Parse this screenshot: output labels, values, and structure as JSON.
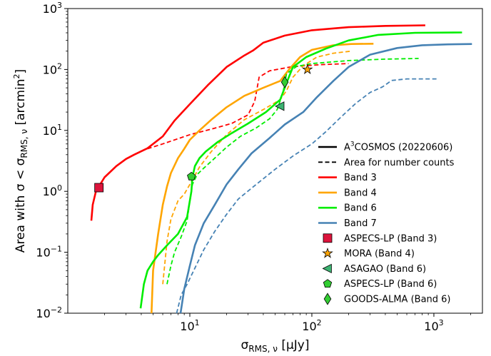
{
  "chart_data": {
    "type": "line",
    "xscale": "log",
    "yscale": "log",
    "xlim": [
      1.0,
      2500
    ],
    "ylim": [
      0.01,
      1000
    ],
    "x_ticks": [
      {
        "value": 10,
        "base": "10",
        "exp": "1"
      },
      {
        "value": 100,
        "base": "10",
        "exp": "2"
      },
      {
        "value": 1000,
        "base": "10",
        "exp": "3"
      }
    ],
    "y_ticks": [
      {
        "value": 0.01,
        "base": "10",
        "exp": "−2"
      },
      {
        "value": 0.1,
        "base": "10",
        "exp": "−1"
      },
      {
        "value": 1,
        "base": "10",
        "exp": "0"
      },
      {
        "value": 10,
        "base": "10",
        "exp": "1"
      },
      {
        "value": 100,
        "base": "10",
        "exp": "2"
      },
      {
        "value": 1000,
        "base": "10",
        "exp": "3"
      }
    ],
    "xlabel": {
      "main": "σ",
      "sub": "RMS, ν",
      "unit": " [μJy]"
    },
    "ylabel": {
      "pre": "Area with σ < σ",
      "sub": "RMS, ν",
      "unit": " [arcmin",
      "sup": "2",
      "close": "]"
    },
    "legend_position": "lower-right",
    "legend": [
      {
        "label_pre": "A",
        "label_sup": "3",
        "label_post": "COSMOS (20220606)",
        "kind": "line",
        "color": "#000000",
        "dash": false
      },
      {
        "label_pre": "Area for number counts",
        "kind": "line",
        "color": "#000000",
        "dash": true
      },
      {
        "label_pre": "Band 3",
        "kind": "line",
        "color": "#ff0000",
        "dash": false
      },
      {
        "label_pre": "Band 4",
        "kind": "line",
        "color": "#ffa500",
        "dash": false
      },
      {
        "label_pre": "Band 6",
        "kind": "line",
        "color": "#00ee00",
        "dash": false
      },
      {
        "label_pre": "Band 7",
        "kind": "line",
        "color": "#4682b4",
        "dash": false
      },
      {
        "label_pre": "ASPECS-LP (Band 3)",
        "kind": "square",
        "color": "#dc143c"
      },
      {
        "label_pre": "MORA (Band 4)",
        "kind": "star",
        "color": "#ffa500"
      },
      {
        "label_pre": "ASAGAO (Band 6)",
        "kind": "triangle-left",
        "color": "#3cb371"
      },
      {
        "label_pre": "ASPECS-LP (Band 6)",
        "kind": "pentagon",
        "color": "#32cd32"
      },
      {
        "label_pre": "GOODS-ALMA (Band 6)",
        "kind": "diamond",
        "color": "#32cd32"
      }
    ],
    "series": [
      {
        "band": "Band 3",
        "style": "solid",
        "color": "#ff0000",
        "points": [
          [
            1.56,
            0.33
          ],
          [
            1.6,
            0.6
          ],
          [
            1.7,
            1.0
          ],
          [
            2.0,
            1.7
          ],
          [
            2.5,
            2.6
          ],
          [
            3.0,
            3.4
          ],
          [
            3.5,
            4.0
          ],
          [
            4.5,
            5.1
          ],
          [
            6.0,
            8.0
          ],
          [
            7.5,
            14.5
          ],
          [
            10.0,
            27
          ],
          [
            14.0,
            55
          ],
          [
            20.0,
            110
          ],
          [
            28.0,
            170
          ],
          [
            33.0,
            205
          ],
          [
            40.0,
            275
          ],
          [
            60.0,
            360
          ],
          [
            100.0,
            440
          ],
          [
            200.0,
            495
          ],
          [
            400.0,
            520
          ],
          [
            850.0,
            530
          ]
        ]
      },
      {
        "band": "Band 3",
        "style": "dashed",
        "color": "#ff0000",
        "points": [
          [
            4.5,
            5.0
          ],
          [
            6.0,
            6.0
          ],
          [
            10.0,
            8.5
          ],
          [
            15.0,
            10.5
          ],
          [
            22.0,
            13.0
          ],
          [
            30.0,
            18.0
          ],
          [
            34.0,
            30.0
          ],
          [
            37.0,
            75.0
          ],
          [
            45.0,
            95.0
          ],
          [
            70.0,
            112
          ],
          [
            120.0,
            120
          ],
          [
            200.0,
            125
          ]
        ]
      },
      {
        "band": "Band 4",
        "style": "solid",
        "color": "#ffa500",
        "points": [
          [
            4.85,
            0.01
          ],
          [
            5.0,
            0.05
          ],
          [
            5.5,
            0.2
          ],
          [
            6.0,
            0.6
          ],
          [
            6.5,
            1.2
          ],
          [
            7.0,
            2.0
          ],
          [
            8.0,
            3.5
          ],
          [
            9.0,
            5.0
          ],
          [
            10.0,
            7.0
          ],
          [
            12.0,
            10.0
          ],
          [
            15.0,
            15.0
          ],
          [
            20.0,
            24.0
          ],
          [
            28.0,
            37.0
          ],
          [
            40.0,
            50.0
          ],
          [
            55.0,
            65.0
          ],
          [
            65.0,
            100
          ],
          [
            80.0,
            160
          ],
          [
            100.0,
            210
          ],
          [
            150.0,
            250
          ],
          [
            210.0,
            262
          ],
          [
            320.0,
            265
          ]
        ]
      },
      {
        "band": "Band 4",
        "style": "dashed",
        "color": "#ffa500",
        "points": [
          [
            6.0,
            0.03
          ],
          [
            6.5,
            0.15
          ],
          [
            7.0,
            0.35
          ],
          [
            8.0,
            0.7
          ],
          [
            9.0,
            0.9
          ],
          [
            10.0,
            1.3
          ],
          [
            12.0,
            2.5
          ],
          [
            15.0,
            4.5
          ],
          [
            20.0,
            8.5
          ],
          [
            28.0,
            15.0
          ],
          [
            40.0,
            22.0
          ],
          [
            55.0,
            32.0
          ],
          [
            62.0,
            45.0
          ],
          [
            70.0,
            75.0
          ],
          [
            85.0,
            115
          ],
          [
            110.0,
            160
          ],
          [
            150.0,
            185
          ],
          [
            210.0,
            200
          ]
        ]
      },
      {
        "band": "Band 6",
        "style": "solid",
        "color": "#00ee00",
        "points": [
          [
            3.95,
            0.012
          ],
          [
            4.2,
            0.03
          ],
          [
            4.5,
            0.05
          ],
          [
            5.0,
            0.07
          ],
          [
            5.5,
            0.09
          ],
          [
            6.5,
            0.13
          ],
          [
            8.0,
            0.2
          ],
          [
            9.5,
            0.38
          ],
          [
            10.3,
            1.0
          ],
          [
            10.5,
            1.7
          ],
          [
            11.0,
            2.6
          ],
          [
            12.0,
            3.5
          ],
          [
            13.5,
            4.5
          ],
          [
            17.0,
            6.5
          ],
          [
            22.0,
            9.0
          ],
          [
            30.0,
            13.0
          ],
          [
            42.0,
            20.0
          ],
          [
            55.0,
            32.0
          ],
          [
            62.0,
            60.0
          ],
          [
            70.0,
            110
          ],
          [
            90.0,
            160
          ],
          [
            130.0,
            220
          ],
          [
            200.0,
            300
          ],
          [
            350.0,
            370
          ],
          [
            700.0,
            400
          ],
          [
            1700.0,
            405
          ]
        ]
      },
      {
        "band": "Band 6",
        "style": "dashed",
        "color": "#00ee00",
        "points": [
          [
            6.5,
            0.03
          ],
          [
            7.0,
            0.06
          ],
          [
            7.5,
            0.1
          ],
          [
            8.5,
            0.18
          ],
          [
            9.5,
            0.33
          ],
          [
            10.0,
            0.7
          ],
          [
            10.5,
            1.3
          ],
          [
            11.5,
            1.9
          ],
          [
            13.0,
            2.4
          ],
          [
            16.0,
            3.5
          ],
          [
            20.0,
            5.3
          ],
          [
            26.0,
            8.0
          ],
          [
            35.0,
            11.0
          ],
          [
            45.0,
            15.5
          ],
          [
            52.0,
            22.0
          ],
          [
            58.0,
            42.0
          ],
          [
            62.0,
            85.0
          ],
          [
            75.0,
            112
          ],
          [
            100.0,
            125
          ],
          [
            200.0,
            140
          ],
          [
            400.0,
            148
          ],
          [
            750.0,
            152
          ]
        ]
      },
      {
        "band": "Band 7",
        "style": "solid",
        "color": "#4682b4",
        "points": [
          [
            8.4,
            0.01
          ],
          [
            9.0,
            0.025
          ],
          [
            10.0,
            0.06
          ],
          [
            11.0,
            0.13
          ],
          [
            13.0,
            0.3
          ],
          [
            16.0,
            0.6
          ],
          [
            20.0,
            1.3
          ],
          [
            25.0,
            2.3
          ],
          [
            32.0,
            4.2
          ],
          [
            45.0,
            7.5
          ],
          [
            60.0,
            12.5
          ],
          [
            85.0,
            20.0
          ],
          [
            110.0,
            35.0
          ],
          [
            150.0,
            65.0
          ],
          [
            200.0,
            110
          ],
          [
            300.0,
            175
          ],
          [
            500.0,
            225
          ],
          [
            800.0,
            250
          ],
          [
            1300.0,
            258
          ],
          [
            2050.0,
            262
          ]
        ]
      },
      {
        "band": "Band 7",
        "style": "dashed",
        "color": "#4682b4",
        "points": [
          [
            7.8,
            0.01
          ],
          [
            8.5,
            0.02
          ],
          [
            9.5,
            0.03
          ],
          [
            11.0,
            0.055
          ],
          [
            13.0,
            0.11
          ],
          [
            16.0,
            0.22
          ],
          [
            20.0,
            0.42
          ],
          [
            25.0,
            0.75
          ],
          [
            35.0,
            1.3
          ],
          [
            50.0,
            2.3
          ],
          [
            70.0,
            3.8
          ],
          [
            100.0,
            6.0
          ],
          [
            130.0,
            9.5
          ],
          [
            170.0,
            16.0
          ],
          [
            230.0,
            28.0
          ],
          [
            300.0,
            42.0
          ],
          [
            380.0,
            52.0
          ],
          [
            450.0,
            66.0
          ],
          [
            600.0,
            70.0
          ],
          [
            1050.0,
            70.0
          ]
        ]
      }
    ],
    "markers": [
      {
        "survey": "ASPECS-LP (Band 3)",
        "x": 1.8,
        "y": 1.15,
        "shape": "square",
        "color": "#dc143c"
      },
      {
        "survey": "MORA (Band 4)",
        "x": 92,
        "y": 100,
        "shape": "star",
        "color": "#ffa500"
      },
      {
        "survey": "ASAGAO (Band 6)",
        "x": 55,
        "y": 25,
        "shape": "triangle-left",
        "color": "#3cb371"
      },
      {
        "survey": "ASPECS-LP (Band 6)",
        "x": 10.3,
        "y": 1.75,
        "shape": "pentagon",
        "color": "#32cd32"
      },
      {
        "survey": "GOODS-ALMA (Band 6)",
        "x": 60,
        "y": 62,
        "shape": "diamond",
        "color": "#32cd32"
      }
    ]
  }
}
